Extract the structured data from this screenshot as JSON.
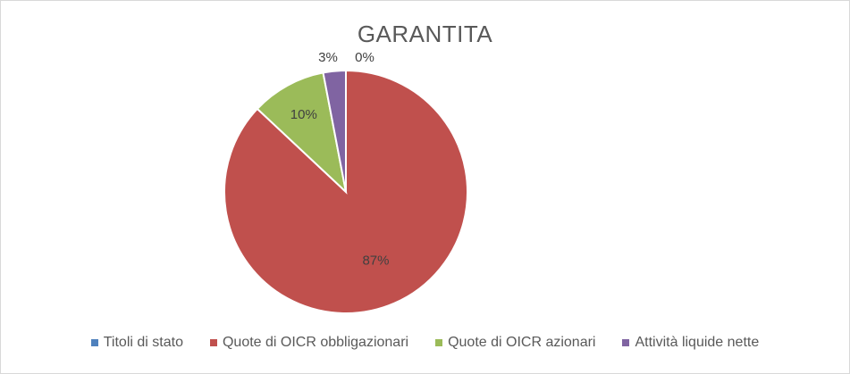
{
  "chart_data": {
    "type": "pie",
    "title": "GARANTITA",
    "categories": [
      "Titoli di stato",
      "Quote di OICR obbligazionari",
      "Quote di OICR azionari",
      "Attività liquide nette"
    ],
    "values": [
      0,
      87,
      10,
      3
    ],
    "data_labels": [
      "0%",
      "87%",
      "10%",
      "3%"
    ],
    "colors": [
      "#4f81bd",
      "#c0504d",
      "#9bbb59",
      "#8064a2"
    ],
    "legend_position": "bottom"
  }
}
